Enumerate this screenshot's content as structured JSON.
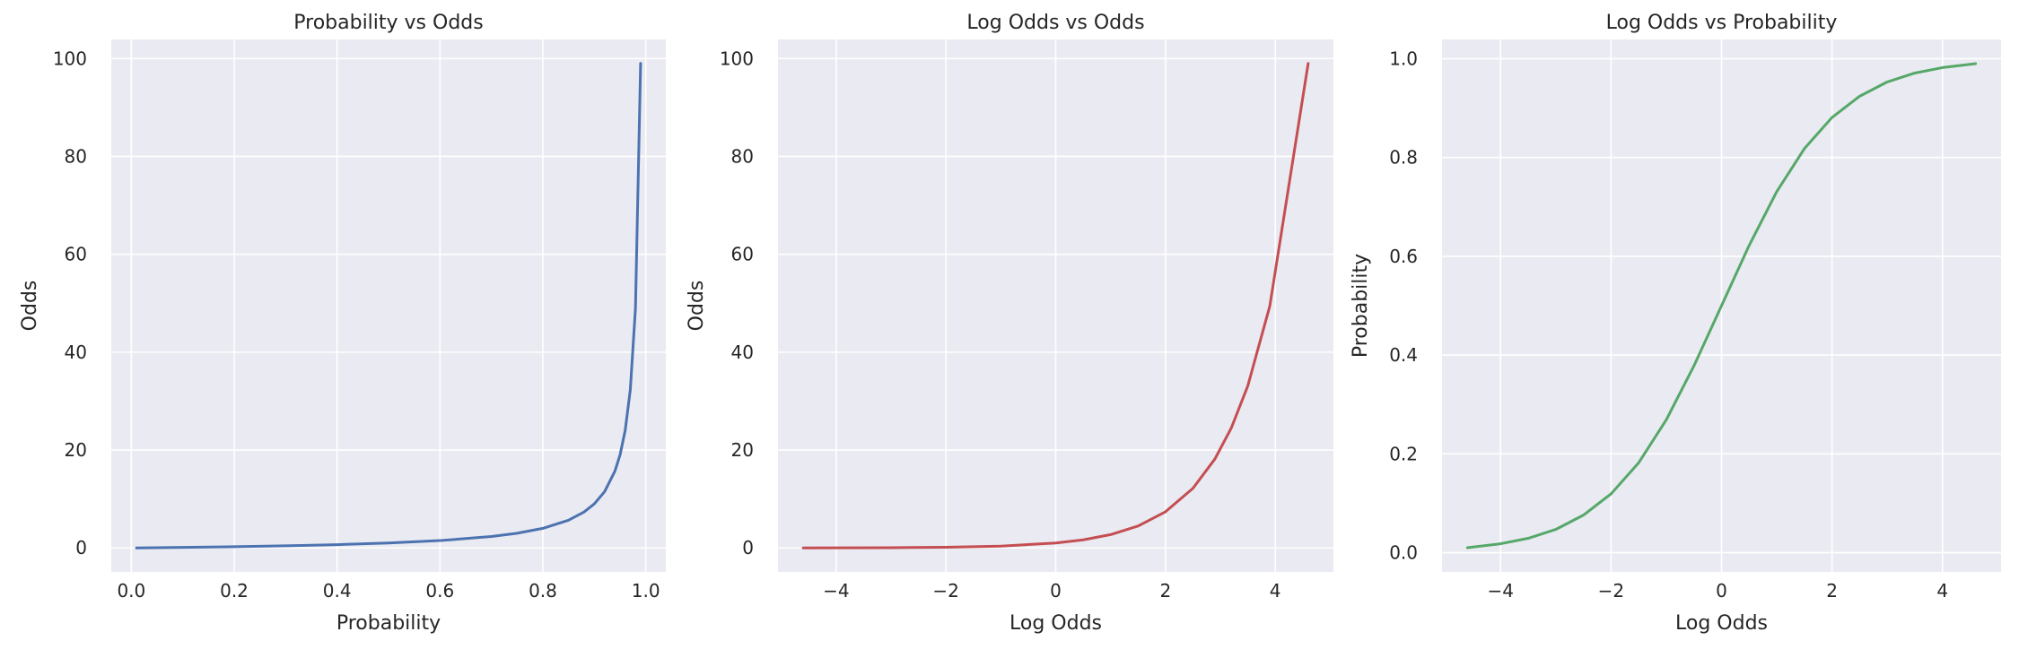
{
  "chart_data": [
    {
      "type": "line",
      "title": "Probability vs Odds",
      "xlabel": "Probability",
      "ylabel": "Odds",
      "xlim": [
        -0.039,
        1.039
      ],
      "ylim": [
        -4.9,
        103.9
      ],
      "xticks": [
        0.0,
        0.2,
        0.4,
        0.6,
        0.8,
        1.0
      ],
      "xtick_labels": [
        "0.0",
        "0.2",
        "0.4",
        "0.6",
        "0.8",
        "1.0"
      ],
      "yticks": [
        0,
        20,
        40,
        60,
        80,
        100
      ],
      "ytick_labels": [
        "0",
        "20",
        "40",
        "60",
        "80",
        "100"
      ],
      "grid": true,
      "color": "#4c72b0",
      "series": [
        {
          "x": [
            0.01,
            0.1,
            0.2,
            0.3,
            0.4,
            0.5,
            0.6,
            0.7,
            0.75,
            0.8,
            0.85,
            0.88,
            0.9,
            0.92,
            0.94,
            0.95,
            0.96,
            0.97,
            0.98,
            0.99
          ],
          "y": [
            0.01,
            0.11,
            0.25,
            0.43,
            0.67,
            1.0,
            1.5,
            2.33,
            3.0,
            4.0,
            5.67,
            7.33,
            9.0,
            11.5,
            15.67,
            19.0,
            24.0,
            32.33,
            49.0,
            99.0
          ]
        }
      ]
    },
    {
      "type": "line",
      "title": "Log Odds vs Odds",
      "xlabel": "Log Odds",
      "ylabel": "Odds",
      "xlim": [
        -5.06,
        5.06
      ],
      "ylim": [
        -4.9,
        103.9
      ],
      "xticks": [
        -4,
        -2,
        0,
        2,
        4
      ],
      "xtick_labels": [
        "−4",
        "−2",
        "0",
        "2",
        "4"
      ],
      "yticks": [
        0,
        20,
        40,
        60,
        80,
        100
      ],
      "ytick_labels": [
        "0",
        "20",
        "40",
        "60",
        "80",
        "100"
      ],
      "grid": true,
      "color": "#c44e52",
      "series": [
        {
          "x": [
            -4.6,
            -3.0,
            -2.0,
            -1.0,
            0.0,
            0.5,
            1.0,
            1.5,
            2.0,
            2.5,
            2.9,
            3.2,
            3.5,
            3.9,
            4.6
          ],
          "y": [
            0.01,
            0.05,
            0.14,
            0.37,
            1.0,
            1.65,
            2.72,
            4.48,
            7.39,
            12.18,
            18.17,
            24.53,
            33.12,
            49.4,
            99.0
          ]
        }
      ]
    },
    {
      "type": "line",
      "title": "Log Odds vs Probability",
      "xlabel": "Log Odds",
      "ylabel": "Probability",
      "xlim": [
        -5.06,
        5.06
      ],
      "ylim": [
        -0.039,
        1.039
      ],
      "xticks": [
        -4,
        -2,
        0,
        2,
        4
      ],
      "xtick_labels": [
        "−4",
        "−2",
        "0",
        "2",
        "4"
      ],
      "yticks": [
        0.0,
        0.2,
        0.4,
        0.6,
        0.8,
        1.0
      ],
      "ytick_labels": [
        "0.0",
        "0.2",
        "0.4",
        "0.6",
        "0.8",
        "1.0"
      ],
      "grid": true,
      "color": "#55a868",
      "series": [
        {
          "x": [
            -4.6,
            -4.0,
            -3.5,
            -3.0,
            -2.5,
            -2.0,
            -1.5,
            -1.0,
            -0.5,
            0.0,
            0.5,
            1.0,
            1.5,
            2.0,
            2.5,
            3.0,
            3.5,
            4.0,
            4.6
          ],
          "y": [
            0.01,
            0.018,
            0.029,
            0.047,
            0.076,
            0.119,
            0.182,
            0.269,
            0.378,
            0.5,
            0.622,
            0.731,
            0.818,
            0.881,
            0.924,
            0.953,
            0.971,
            0.982,
            0.99
          ]
        }
      ]
    }
  ]
}
